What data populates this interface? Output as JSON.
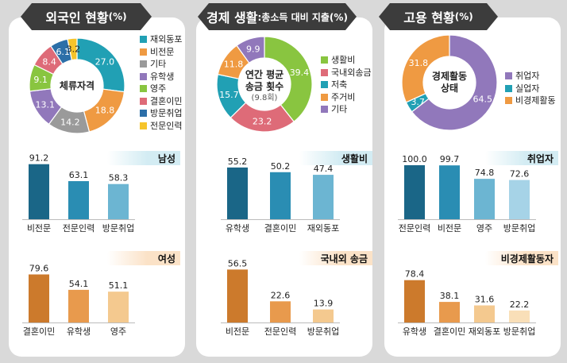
{
  "panels": [
    {
      "title": "외국인 현황",
      "title_unit": "(%)",
      "donut": {
        "center_label": [
          "체류자격"
        ],
        "slices": [
          {
            "label": "재외동포",
            "value": 27.0,
            "text": "27.0",
            "color": "#21a0b4"
          },
          {
            "label": "비전문",
            "value": 18.8,
            "text": "18.8",
            "color": "#ef9a42"
          },
          {
            "label": "기타",
            "value": 14.2,
            "text": "14.2",
            "color": "#9a9a9a"
          },
          {
            "label": "유학생",
            "value": 13.1,
            "text": "13.1",
            "color": "#9178bb"
          },
          {
            "label": "영주",
            "value": 9.1,
            "text": "9.1",
            "color": "#89c540"
          },
          {
            "label": "결혼이민",
            "value": 8.4,
            "text": "8.4",
            "color": "#de6b78"
          },
          {
            "label": "방문취업",
            "value": 6.1,
            "text": "6.1",
            "color": "#2c6fa8"
          },
          {
            "label": "전문인력",
            "value": 3.2,
            "text": "3.2",
            "color": "#f6c42b"
          }
        ]
      },
      "bar_groups": [
        {
          "tag": "남성",
          "tone": "blue",
          "items": [
            {
              "label": "비전문",
              "value": 91.2,
              "text": "91.2"
            },
            {
              "label": "전문인력",
              "value": 63.1,
              "text": "63.1"
            },
            {
              "label": "방문취업",
              "value": 58.3,
              "text": "58.3"
            }
          ]
        },
        {
          "tag": "여성",
          "tone": "orange",
          "items": [
            {
              "label": "결혼이민",
              "value": 79.6,
              "text": "79.6"
            },
            {
              "label": "유학생",
              "value": 54.1,
              "text": "54.1"
            },
            {
              "label": "영주",
              "value": 51.1,
              "text": "51.1"
            }
          ]
        }
      ]
    },
    {
      "title": "경제 생활",
      "title_sub": ":총소득 대비 지출(%)",
      "donut": {
        "center_label": [
          "연간 평균",
          "송금 횟수"
        ],
        "center_sub": "(9.8회)",
        "slices": [
          {
            "label": "생활비",
            "value": 39.4,
            "text": "39.4",
            "color": "#89c540"
          },
          {
            "label": "국내외송금",
            "value": 23.2,
            "text": "23.2",
            "color": "#de6b78"
          },
          {
            "label": "저축",
            "value": 15.7,
            "text": "15.7",
            "color": "#21a0b4"
          },
          {
            "label": "주거비",
            "value": 11.8,
            "text": "11.8",
            "color": "#ef9a42"
          },
          {
            "label": "기타",
            "value": 9.9,
            "text": "9.9",
            "color": "#9178bb"
          }
        ]
      },
      "bar_groups": [
        {
          "tag": "생활비",
          "tone": "blue",
          "items": [
            {
              "label": "유학생",
              "value": 55.2,
              "text": "55.2"
            },
            {
              "label": "결혼이민",
              "value": 50.2,
              "text": "50.2"
            },
            {
              "label": "재외동포",
              "value": 47.4,
              "text": "47.4"
            }
          ]
        },
        {
          "tag": "국내외 송금",
          "tone": "orange",
          "items": [
            {
              "label": "비전문",
              "value": 56.5,
              "text": "56.5"
            },
            {
              "label": "전문인력",
              "value": 22.6,
              "text": "22.6"
            },
            {
              "label": "방문취업",
              "value": 13.9,
              "text": "13.9"
            }
          ]
        }
      ]
    },
    {
      "title": "고용 현황",
      "title_unit": "(%)",
      "donut": {
        "center_label": [
          "경제활동",
          "상태"
        ],
        "slices": [
          {
            "label": "취업자",
            "value": 64.5,
            "text": "64.5",
            "color": "#9178bb"
          },
          {
            "label": "실업자",
            "value": 3.7,
            "text": "3.7",
            "color": "#21a0b4"
          },
          {
            "label": "비경제활동",
            "value": 31.8,
            "text": "31.8",
            "color": "#ef9a42"
          }
        ]
      },
      "bar_groups": [
        {
          "tag": "취업자",
          "tone": "blue",
          "items": [
            {
              "label": "전문인력",
              "value": 100.0,
              "text": "100.0"
            },
            {
              "label": "비전문",
              "value": 99.7,
              "text": "99.7"
            },
            {
              "label": "영주",
              "value": 74.8,
              "text": "74.8"
            },
            {
              "label": "방문취업",
              "value": 72.6,
              "text": "72.6"
            }
          ]
        },
        {
          "tag": "비경제활동자",
          "tone": "orange",
          "items": [
            {
              "label": "유학생",
              "value": 78.4,
              "text": "78.4"
            },
            {
              "label": "결혼이민",
              "value": 38.1,
              "text": "38.1"
            },
            {
              "label": "재외동포",
              "value": 31.6,
              "text": "31.6"
            },
            {
              "label": "방문취업",
              "value": 22.2,
              "text": "22.2"
            }
          ]
        }
      ]
    }
  ],
  "chart_data": [
    {
      "type": "pie",
      "title": "외국인 현황(%)",
      "center_text": "체류자격",
      "categories": [
        "재외동포",
        "비전문",
        "기타",
        "유학생",
        "영주",
        "결혼이민",
        "방문취업",
        "전문인력"
      ],
      "values": [
        27.0,
        18.8,
        14.2,
        13.1,
        9.1,
        8.4,
        6.1,
        3.2
      ],
      "legend": "right"
    },
    {
      "type": "bar",
      "title": "남성",
      "categories": [
        "비전문",
        "전문인력",
        "방문취업"
      ],
      "values": [
        91.2,
        63.1,
        58.3
      ]
    },
    {
      "type": "bar",
      "title": "여성",
      "categories": [
        "결혼이민",
        "유학생",
        "영주"
      ],
      "values": [
        79.6,
        54.1,
        51.1
      ]
    },
    {
      "type": "pie",
      "title": "경제 생활:총소득 대비 지출(%)",
      "center_text": "연간 평균 송금 횟수 (9.8회)",
      "categories": [
        "생활비",
        "국내외송금",
        "저축",
        "주거비",
        "기타"
      ],
      "values": [
        39.4,
        23.2,
        15.7,
        11.8,
        9.9
      ],
      "legend": "right"
    },
    {
      "type": "bar",
      "title": "생활비",
      "categories": [
        "유학생",
        "결혼이민",
        "재외동포"
      ],
      "values": [
        55.2,
        50.2,
        47.4
      ]
    },
    {
      "type": "bar",
      "title": "국내외 송금",
      "categories": [
        "비전문",
        "전문인력",
        "방문취업"
      ],
      "values": [
        56.5,
        22.6,
        13.9
      ]
    },
    {
      "type": "pie",
      "title": "고용 현황(%)",
      "center_text": "경제활동 상태",
      "categories": [
        "취업자",
        "실업자",
        "비경제활동"
      ],
      "values": [
        64.5,
        3.7,
        31.8
      ],
      "legend": "right"
    },
    {
      "type": "bar",
      "title": "취업자",
      "categories": [
        "전문인력",
        "비전문",
        "영주",
        "방문취업"
      ],
      "values": [
        100.0,
        99.7,
        74.8,
        72.6
      ]
    },
    {
      "type": "bar",
      "title": "비경제활동자",
      "categories": [
        "유학생",
        "결혼이민",
        "재외동포",
        "방문취업"
      ],
      "values": [
        78.4,
        38.1,
        31.6,
        22.2
      ]
    }
  ],
  "palettes": {
    "blue": [
      "#1a6687",
      "#2a8db3",
      "#6cb5d2",
      "#a6d3e7"
    ],
    "orange": [
      "#cc7a2c",
      "#e89a4d",
      "#f4c98f",
      "#f9dfb8"
    ]
  }
}
